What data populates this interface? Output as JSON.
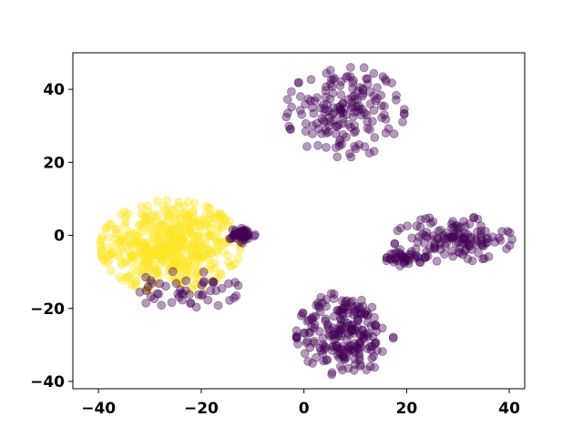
{
  "chart_data": {
    "type": "scatter",
    "xlim": [
      -45,
      43
    ],
    "ylim": [
      -42,
      50
    ],
    "x_ticks": [
      -40,
      -20,
      0,
      20,
      40
    ],
    "y_ticks": [
      -40,
      -20,
      0,
      20,
      40
    ],
    "x_tick_labels": [
      "−40",
      "−20",
      "0",
      "20",
      "40"
    ],
    "y_tick_labels": [
      "−40",
      "−20",
      "0",
      "20",
      "40"
    ],
    "grid": false,
    "marker_alpha": 0.4,
    "colors": {
      "class_0": "#440154",
      "class_1": "#fde725"
    },
    "clusters": [
      {
        "label": "class_1",
        "count": 480,
        "center": [
          -26,
          -3
        ],
        "spread": [
          6.5,
          6.0
        ],
        "note_bounds": {
          "x": [
            -41,
            -14
          ],
          "y": [
            -16,
            12
          ]
        }
      },
      {
        "label": "class_0",
        "count": 45,
        "center": [
          -12,
          0
        ],
        "spread": [
          1.3,
          1.0
        ]
      },
      {
        "label": "class_0",
        "count": 50,
        "center": [
          -23,
          -15
        ],
        "spread": [
          5.0,
          2.5
        ]
      },
      {
        "label": "class_0",
        "count": 170,
        "center": [
          8,
          34
        ],
        "spread": [
          5.5,
          6.0
        ]
      },
      {
        "label": "class_0",
        "count": 130,
        "center": [
          29,
          -1
        ],
        "spread": [
          5.5,
          3.0
        ]
      },
      {
        "label": "class_0",
        "count": 40,
        "center": [
          20,
          -6
        ],
        "spread": [
          2.0,
          1.2
        ]
      },
      {
        "label": "class_0",
        "count": 220,
        "center": [
          8,
          -27
        ],
        "spread": [
          4.5,
          5.5
        ]
      }
    ]
  }
}
